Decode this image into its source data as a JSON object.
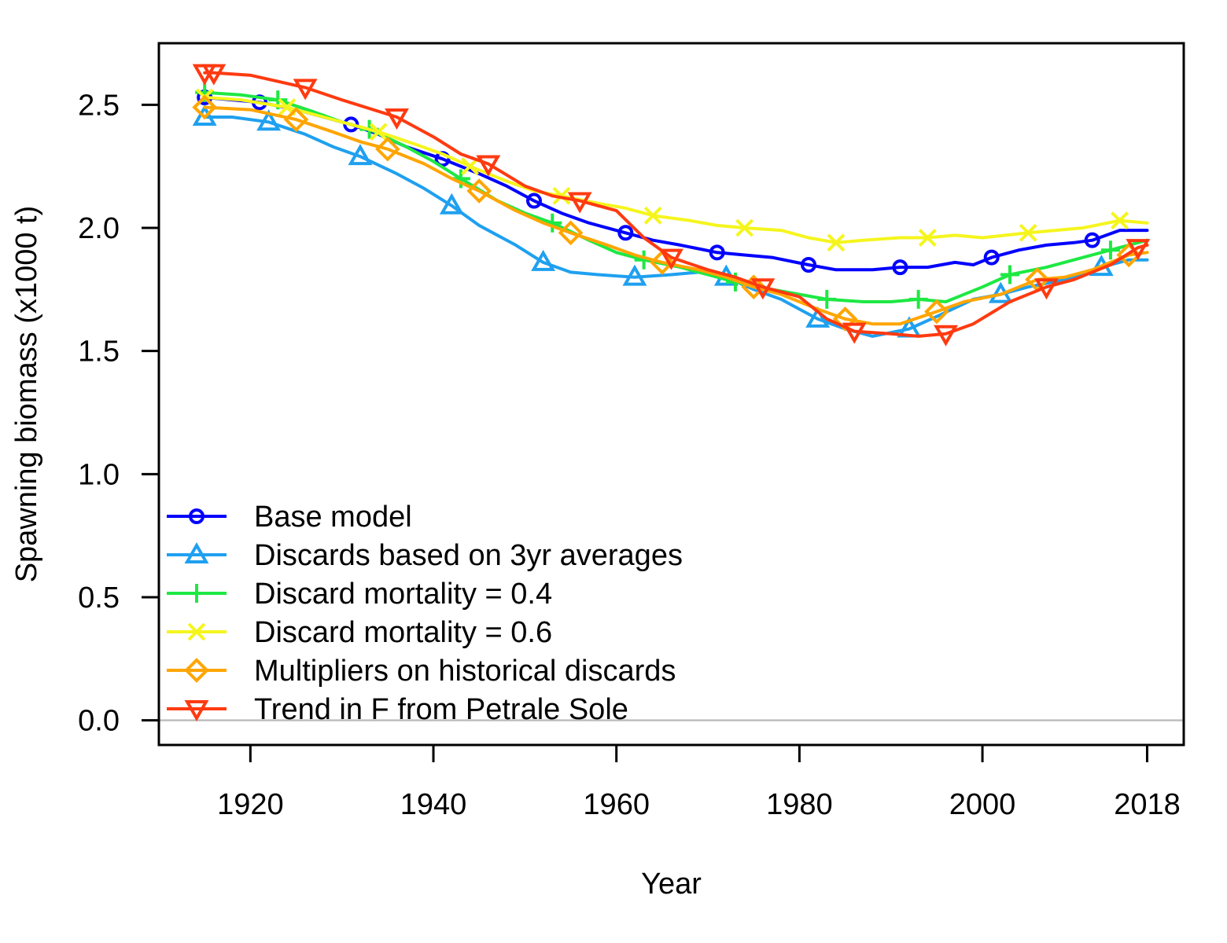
{
  "chart_data": {
    "type": "line",
    "xlabel": "Year",
    "ylabel": "Spawning biomass (x1000 t)",
    "xlim": [
      1910,
      2022
    ],
    "ylim": [
      -0.1,
      2.75
    ],
    "x_ticks": [
      1920,
      1940,
      1960,
      1980,
      2000,
      2018
    ],
    "x_tick_labels": [
      "1920",
      "1940",
      "1960",
      "1980",
      "2000",
      "2018"
    ],
    "y_ticks": [
      0,
      0.5,
      1,
      1.5,
      2,
      2.5
    ],
    "y_tick_labels": [
      "0.0",
      "0.5",
      "1.0",
      "1.5",
      "2.0",
      "2.5"
    ],
    "reference_line": {
      "y": 0,
      "color": "#bebebe"
    },
    "legend_position": "bottom-left",
    "series": [
      {
        "name": "Base model",
        "color": "#0000ff",
        "marker": "circle",
        "marker_x": [
          1915,
          1921,
          1931,
          1941,
          1951,
          1961,
          1971,
          1981,
          1991,
          2001,
          2012
        ],
        "x": [
          1915,
          1918,
          1921,
          1925,
          1928,
          1931,
          1934,
          1937,
          1941,
          1945,
          1948,
          1951,
          1954,
          1957,
          1961,
          1964,
          1967,
          1971,
          1974,
          1977,
          1981,
          1984,
          1988,
          1991,
          1994,
          1997,
          1999,
          2001,
          2004,
          2007,
          2010,
          2012,
          2015,
          2018
        ],
        "y": [
          2.53,
          2.52,
          2.51,
          2.48,
          2.45,
          2.42,
          2.38,
          2.33,
          2.28,
          2.22,
          2.17,
          2.11,
          2.06,
          2.02,
          1.98,
          1.95,
          1.93,
          1.9,
          1.89,
          1.88,
          1.85,
          1.83,
          1.83,
          1.84,
          1.84,
          1.86,
          1.85,
          1.88,
          1.91,
          1.93,
          1.94,
          1.95,
          1.99,
          1.99
        ]
      },
      {
        "name": "Discards based on 3yr averages",
        "color": "#1fa0f0",
        "marker": "triangle-up",
        "marker_x": [
          1915,
          1922,
          1932,
          1942,
          1952,
          1962,
          1972,
          1982,
          1992,
          2002,
          2013
        ],
        "x": [
          1915,
          1918,
          1922,
          1926,
          1929,
          1932,
          1936,
          1939,
          1942,
          1945,
          1949,
          1952,
          1955,
          1958,
          1962,
          1966,
          1969,
          1972,
          1975,
          1978,
          1982,
          1985,
          1988,
          1992,
          1995,
          1999,
          2002,
          2005,
          2009,
          2013,
          2016,
          2018
        ],
        "y": [
          2.45,
          2.45,
          2.43,
          2.38,
          2.33,
          2.29,
          2.22,
          2.16,
          2.09,
          2.01,
          1.93,
          1.86,
          1.82,
          1.81,
          1.8,
          1.81,
          1.82,
          1.8,
          1.75,
          1.71,
          1.63,
          1.59,
          1.56,
          1.59,
          1.64,
          1.71,
          1.73,
          1.76,
          1.79,
          1.84,
          1.87,
          1.87
        ]
      },
      {
        "name": "Discard mortality = 0.4",
        "color": "#1ee843",
        "marker": "plus",
        "marker_x": [
          1915,
          1923,
          1933,
          1943,
          1953,
          1963,
          1973,
          1983,
          1993,
          2003,
          2014
        ],
        "x": [
          1915,
          1919,
          1923,
          1927,
          1930,
          1933,
          1937,
          1940,
          1943,
          1947,
          1950,
          1953,
          1957,
          1960,
          1963,
          1967,
          1970,
          1973,
          1977,
          1980,
          1983,
          1987,
          1990,
          1993,
          1996,
          2000,
          2003,
          2007,
          2010,
          2014,
          2018
        ],
        "y": [
          2.55,
          2.54,
          2.52,
          2.47,
          2.43,
          2.4,
          2.33,
          2.27,
          2.2,
          2.11,
          2.06,
          2.02,
          1.95,
          1.9,
          1.87,
          1.84,
          1.81,
          1.78,
          1.75,
          1.73,
          1.71,
          1.7,
          1.7,
          1.71,
          1.7,
          1.76,
          1.81,
          1.84,
          1.87,
          1.91,
          1.95
        ]
      },
      {
        "name": "Discard mortality = 0.6",
        "color": "#f5f51e",
        "marker": "x",
        "marker_x": [
          1915,
          1924,
          1934,
          1944,
          1954,
          1964,
          1974,
          1984,
          1994,
          2005,
          2015
        ],
        "x": [
          1915,
          1919,
          1924,
          1928,
          1931,
          1934,
          1938,
          1941,
          1944,
          1948,
          1951,
          1954,
          1958,
          1961,
          1964,
          1968,
          1971,
          1974,
          1978,
          1981,
          1984,
          1987,
          1991,
          1994,
          1997,
          2000,
          2005,
          2008,
          2011,
          2015,
          2018
        ],
        "y": [
          2.53,
          2.52,
          2.49,
          2.45,
          2.42,
          2.39,
          2.34,
          2.3,
          2.25,
          2.19,
          2.15,
          2.13,
          2.1,
          2.08,
          2.05,
          2.03,
          2.01,
          2.0,
          1.99,
          1.96,
          1.94,
          1.95,
          1.96,
          1.96,
          1.97,
          1.96,
          1.98,
          1.99,
          2.0,
          2.03,
          2.02
        ]
      },
      {
        "name": "Multipliers on historical discards",
        "color": "#ffa500",
        "marker": "diamond",
        "marker_x": [
          1915,
          1925,
          1935,
          1945,
          1955,
          1965,
          1975,
          1985,
          1995,
          2006,
          2016
        ],
        "x": [
          1915,
          1920,
          1925,
          1929,
          1932,
          1935,
          1939,
          1942,
          1945,
          1949,
          1952,
          1955,
          1959,
          1962,
          1965,
          1969,
          1972,
          1975,
          1978,
          1982,
          1985,
          1988,
          1991,
          1995,
          1998,
          2002,
          2006,
          2009,
          2012,
          2016,
          2018
        ],
        "y": [
          2.49,
          2.48,
          2.44,
          2.39,
          2.35,
          2.32,
          2.26,
          2.2,
          2.15,
          2.07,
          2.02,
          1.98,
          1.93,
          1.89,
          1.86,
          1.83,
          1.8,
          1.76,
          1.73,
          1.67,
          1.63,
          1.61,
          1.61,
          1.66,
          1.7,
          1.73,
          1.79,
          1.8,
          1.83,
          1.89,
          1.9
        ]
      },
      {
        "name": "Trend in F from Petrale Sole",
        "color": "#ff3a10",
        "marker": "triangle-down",
        "marker_x": [
          1915,
          1916,
          1926,
          1936,
          1946,
          1956,
          1966,
          1976,
          1986,
          1996,
          2007,
          2017
        ],
        "x": [
          1915,
          1916,
          1920,
          1926,
          1930,
          1936,
          1940,
          1943,
          1946,
          1950,
          1953,
          1956,
          1960,
          1963,
          1966,
          1970,
          1973,
          1976,
          1980,
          1983,
          1986,
          1990,
          1993,
          1996,
          1999,
          2003,
          2007,
          2010,
          2014,
          2017,
          2018
        ],
        "y": [
          2.63,
          2.63,
          2.62,
          2.57,
          2.52,
          2.45,
          2.37,
          2.3,
          2.26,
          2.17,
          2.13,
          2.11,
          2.07,
          1.96,
          1.88,
          1.83,
          1.8,
          1.76,
          1.72,
          1.63,
          1.58,
          1.57,
          1.56,
          1.57,
          1.61,
          1.7,
          1.76,
          1.79,
          1.85,
          1.92,
          1.93
        ]
      }
    ]
  }
}
